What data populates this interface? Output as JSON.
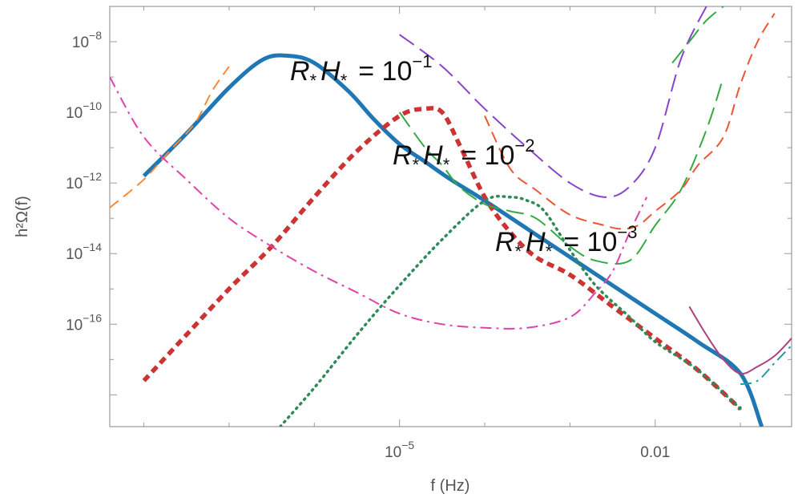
{
  "chart_data": {
    "type": "line",
    "title": "",
    "xlabel": "f (Hz)",
    "ylabel": "h²Ω(f)",
    "xscale": "log",
    "yscale": "log",
    "xlim_log10": [
      -8.4,
      -0.4
    ],
    "ylim_log10": [
      -18.9,
      -7.0
    ],
    "grid": false,
    "x_ticks": [
      {
        "exp": -5,
        "label": "10",
        "sup": "−5"
      },
      {
        "exp": -2,
        "label": "0.01",
        "sup": ""
      }
    ],
    "y_ticks": [
      {
        "exp": -8,
        "label": "10",
        "sup": "−8"
      },
      {
        "exp": -10,
        "label": "10",
        "sup": "−10"
      },
      {
        "exp": -12,
        "label": "10",
        "sup": "−12"
      },
      {
        "exp": -14,
        "label": "10",
        "sup": "−14"
      },
      {
        "exp": -16,
        "label": "10",
        "sup": "−16"
      }
    ],
    "annotations": [
      {
        "base": "R",
        "mid": "H",
        "sub": "*",
        "rhs": "=  10",
        "sup": "−1"
      },
      {
        "base": "R",
        "mid": "H",
        "sub": "*",
        "rhs": "=  10",
        "sup": "−2"
      },
      {
        "base": "R",
        "mid": "H",
        "sub": "*",
        "rhs": "=  10",
        "sup": "−3"
      }
    ],
    "series": [
      {
        "style": "solid",
        "color": "#1f77b4",
        "x_log10": [
          -8.0,
          -7.5,
          -7.0,
          -6.6,
          -6.3,
          -6.0,
          -5.6,
          -5.3,
          -5.0,
          -4.7,
          -4.4,
          -4.0,
          -3.5,
          -3.0,
          -2.5,
          -2.0,
          -1.5,
          -1.0,
          -0.75
        ],
        "y_log10": [
          -11.8,
          -10.6,
          -9.3,
          -8.5,
          -8.4,
          -8.6,
          -9.4,
          -10.2,
          -10.9,
          -11.4,
          -11.9,
          -12.5,
          -13.3,
          -14.1,
          -14.9,
          -15.7,
          -16.5,
          -17.4,
          -18.9
        ]
      },
      {
        "style": "dash-thick",
        "color": "#cc3333",
        "x_log10": [
          -8.0,
          -7.5,
          -7.0,
          -6.5,
          -6.0,
          -5.5,
          -5.0,
          -4.7,
          -4.5,
          -4.3,
          -4.0,
          -3.7,
          -3.4,
          -3.0,
          -2.5,
          -2.0,
          -1.5,
          -1.0
        ],
        "y_log10": [
          -17.6,
          -16.3,
          -15.0,
          -13.8,
          -12.4,
          -11.1,
          -10.1,
          -9.9,
          -10.0,
          -10.9,
          -12.4,
          -13.4,
          -14.1,
          -14.6,
          -15.5,
          -16.4,
          -17.3,
          -18.4
        ]
      },
      {
        "style": "dot",
        "color": "#2e8b57",
        "x_log10": [
          -6.4,
          -6.0,
          -5.5,
          -5.0,
          -4.5,
          -4.0,
          -3.7,
          -3.5,
          -3.3,
          -3.0,
          -2.7,
          -2.3,
          -2.0,
          -1.5,
          -1.0
        ],
        "y_log10": [
          -18.9,
          -17.8,
          -16.3,
          -14.9,
          -13.6,
          -12.5,
          -12.4,
          -12.5,
          -12.8,
          -13.9,
          -14.9,
          -15.8,
          -16.5,
          -17.3,
          -18.4
        ]
      },
      {
        "style": "dash-long",
        "color": "#8844cc",
        "x_log10": [
          -5.0,
          -4.5,
          -4.0,
          -3.5,
          -3.0,
          -2.6,
          -2.3,
          -2.0,
          -1.7,
          -1.4
        ],
        "y_log10": [
          -7.8,
          -8.7,
          -9.9,
          -11.0,
          -12.0,
          -12.4,
          -12.1,
          -11.0,
          -8.5,
          -7.0
        ]
      },
      {
        "style": "dash-long",
        "color": "#33aa44",
        "x_log10": [
          -5.0,
          -4.7,
          -4.5,
          -4.3,
          -4.0,
          -3.7,
          -3.4,
          -3.0,
          -2.7,
          -2.3,
          -2.0,
          -1.7,
          -1.4,
          -1.2
        ],
        "y_log10": [
          -10.0,
          -11.0,
          -11.5,
          -12.1,
          -12.6,
          -12.8,
          -13.0,
          -13.8,
          -14.2,
          -14.2,
          -13.2,
          -12.2,
          -10.5,
          -9.0
        ]
      },
      {
        "style": "dash-long",
        "color": "#33aa44",
        "x_log10": [
          -1.8,
          -1.6,
          -1.4,
          -1.2
        ],
        "y_log10": [
          -8.6,
          -8.0,
          -7.4,
          -7.0
        ]
      },
      {
        "style": "dash",
        "color": "#ee5533",
        "x_log10": [
          -4.0,
          -3.7,
          -3.4,
          -3.0,
          -2.6,
          -2.4,
          -2.2,
          -2.0,
          -1.7,
          -1.5,
          -1.2,
          -1.0,
          -0.8,
          -0.6
        ],
        "y_log10": [
          -10.1,
          -11.6,
          -12.2,
          -12.9,
          -13.2,
          -13.3,
          -13.2,
          -12.8,
          -12.2,
          -11.5,
          -10.7,
          -9.2,
          -8.0,
          -7.2
        ]
      },
      {
        "style": "dash",
        "color": "#ff8833",
        "x_log10": [
          -8.4,
          -8.0,
          -7.7,
          -7.4,
          -7.2,
          -7.0
        ],
        "y_log10": [
          -12.7,
          -11.9,
          -11.1,
          -10.3,
          -9.4,
          -8.7
        ]
      },
      {
        "style": "dashdot",
        "color": "#dd44aa",
        "x_log10": [
          -8.4,
          -8.0,
          -7.5,
          -7.0,
          -6.5,
          -6.0,
          -5.5,
          -5.0,
          -4.5,
          -4.0,
          -3.5,
          -3.0,
          -2.7,
          -2.5,
          -2.3,
          -2.1
        ],
        "y_log10": [
          -9.0,
          -10.7,
          -11.9,
          -13.0,
          -13.8,
          -14.5,
          -15.1,
          -15.7,
          -16.0,
          -16.1,
          -16.1,
          -15.8,
          -15.1,
          -14.5,
          -13.4,
          -12.4
        ]
      },
      {
        "style": "solid-thin",
        "color": "#b0417f",
        "x_log10": [
          -1.6,
          -1.4,
          -1.2,
          -1.0,
          -0.8,
          -0.6,
          -0.4
        ],
        "y_log10": [
          -15.5,
          -16.3,
          -17.0,
          -17.4,
          -17.2,
          -16.9,
          -16.4
        ]
      },
      {
        "style": "dashdot",
        "color": "#1e9aa6",
        "x_log10": [
          -1.0,
          -0.8,
          -0.6,
          -0.4
        ],
        "y_log10": [
          -17.7,
          -17.6,
          -17.1,
          -16.6
        ]
      }
    ]
  }
}
